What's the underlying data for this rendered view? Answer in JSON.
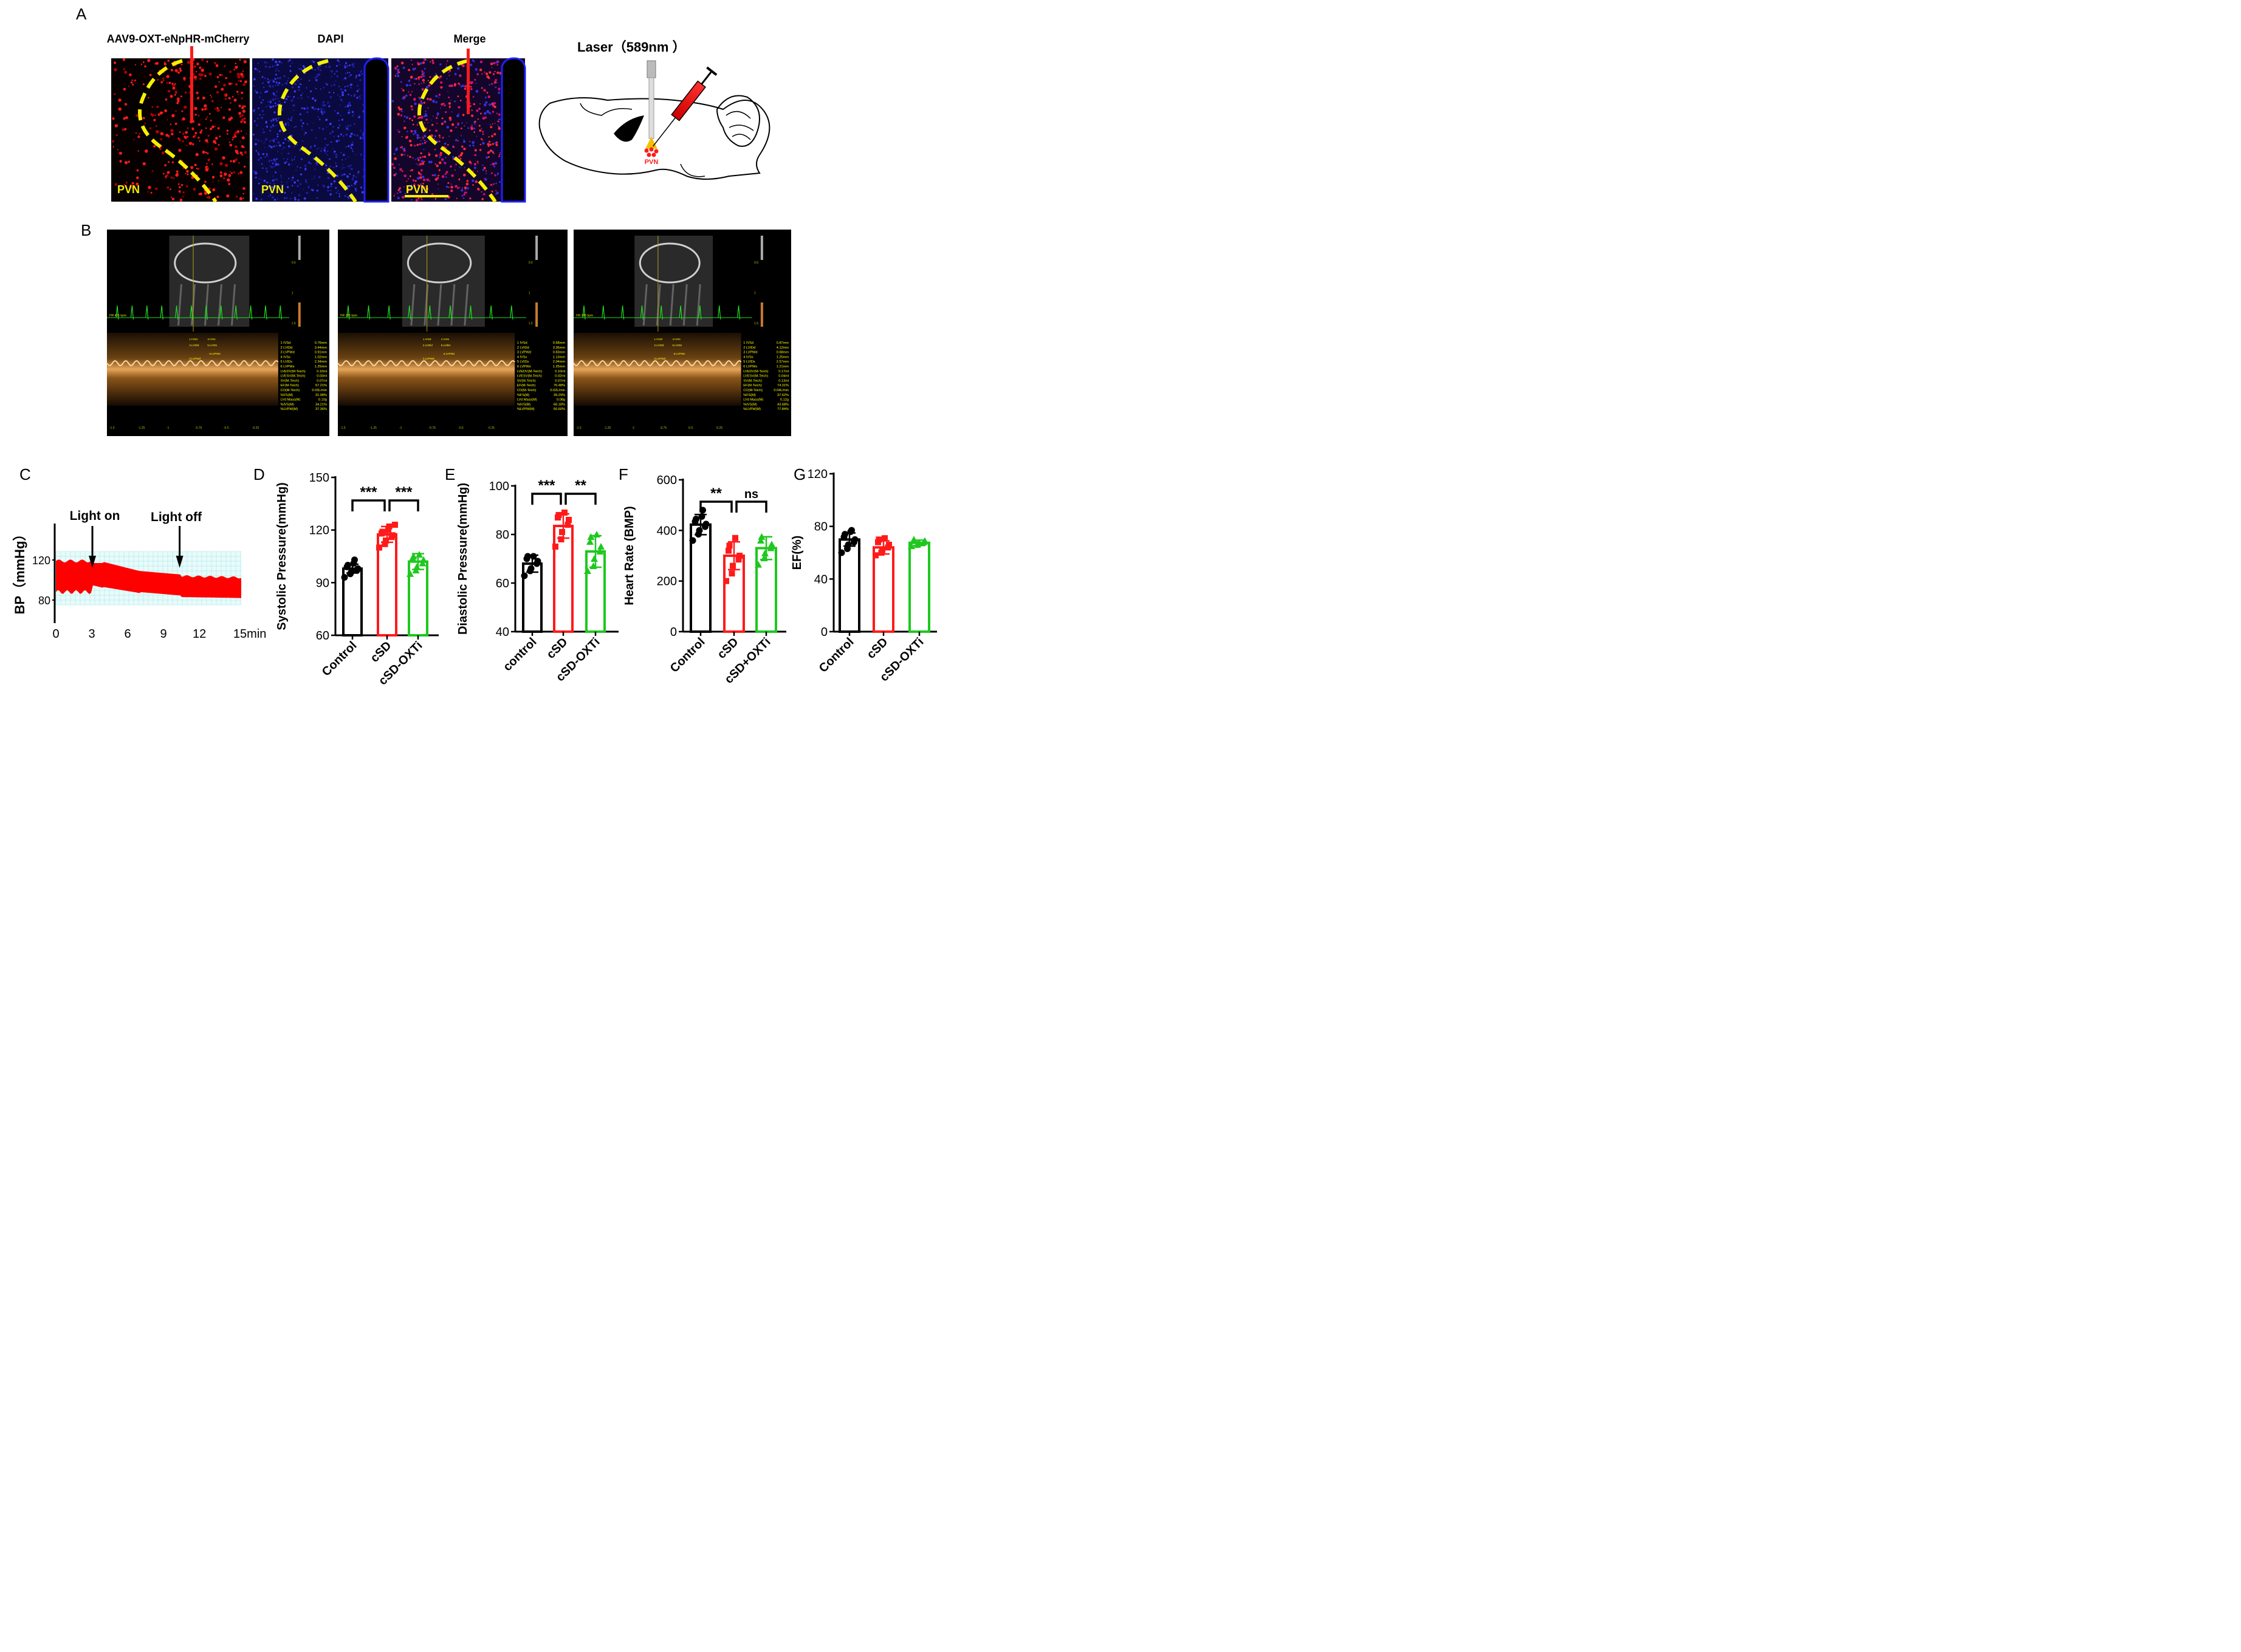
{
  "panel_letters": {
    "a": "A",
    "b": "B",
    "c": "C",
    "d": "D",
    "e": "E",
    "f": "F",
    "g": "G"
  },
  "panel_a": {
    "image_titles": [
      "AAV9-OXT-eNpHR-mCherry",
      "DAPI",
      "Merge"
    ],
    "region_label": "PVN",
    "laser_label": "Laser（589nm ）",
    "brain_label": "PVN",
    "colors": {
      "red": "#ff1a1a",
      "dapi_blue": "#1010c8",
      "dashed_outline": "#f5f000",
      "label_yellow": "#f5f000"
    }
  },
  "panel_b": {
    "hr_labels": [
      "HR 406 bpm",
      "HR 285 bpm",
      "HR 288 bpm"
    ],
    "marker_labels": [
      "1.IVSd",
      "4.IVSs",
      "2.LVIDd",
      "5.LVIDs",
      "3.LVPWd",
      "6.LVPWs"
    ],
    "axis_ticks": [
      "-1.5",
      "-1.25",
      "-1",
      "-0.75",
      "-0.5",
      "-0.25"
    ],
    "depth_ticks": [
      "0.5",
      "1",
      "1.5"
    ],
    "measure_names": [
      "1 IVSd",
      "2 LVIDd",
      "3 LVPWd",
      "4 IVSs",
      "5 LVIDs",
      "6 LVPWs",
      "LVEDV(M-Teich)",
      "LVESV(M-Teich)",
      "SV(M-Teich)",
      "EF(M-Teich)",
      "CO(M-Teich)",
      "%FS(M)",
      "LVd Mass(M)",
      "%IVS(M)",
      "%LVPW(M)"
    ],
    "measure_values": [
      [
        "0.76mm",
        "3.44mm",
        "0.91mm",
        "1.02mm",
        "2.34mm",
        "1.25mm",
        "0.10ml",
        "0.03ml",
        "0.07ml",
        "67.21%",
        "0.03L/min",
        "31.98%",
        "0.10g",
        "34.21%",
        "37.36%"
      ],
      [
        "0.68mm",
        "3.36mm",
        "0.83mm",
        "1.13mm",
        "2.04mm",
        "1.25mm",
        "0.10ml",
        "0.02ml",
        "0.07ml",
        "76.48%",
        "0.02L/min",
        "39.29%",
        "0.08g",
        "66.18%",
        "50.60%"
      ],
      [
        "0.87mm",
        "4.12mm",
        "0.68mm",
        "1.25mm",
        "2.57mm",
        "1.21mm",
        "0.17ml",
        "0.04ml",
        "0.13ml",
        "74.31%",
        "0.04L/min",
        "37.62%",
        "0.12g",
        "43.68%",
        "77.84%"
      ]
    ],
    "colors": {
      "ecg": "#22dd22",
      "text": "#ffff00",
      "mmode": "#d08a30"
    }
  },
  "panel_c": {
    "ylabel": "BP（mmHg）",
    "x_ticks": [
      "0",
      "3",
      "6",
      "9",
      "12",
      "15min"
    ],
    "y_ticks": [
      "120",
      "80"
    ],
    "light_on_label": "Light on",
    "light_off_label": "Light off",
    "light_on_min": 3,
    "light_off_min": 10.5,
    "trace_color": "#ff0000"
  },
  "panel_d": {
    "ylabel": "Systolic Pressure(mmHg)",
    "ylim": [
      60,
      150
    ],
    "ticks": [
      "60",
      "90",
      "120",
      "150"
    ],
    "categories": [
      "Control",
      "cSD",
      "cSD-OXTi"
    ],
    "means": [
      98,
      117.5,
      102
    ],
    "sd": [
      2.5,
      4.5,
      4.5
    ],
    "markers": [
      "circle",
      "square",
      "triangle"
    ],
    "points": [
      [
        93,
        95,
        96,
        97,
        98,
        99,
        100,
        101,
        103
      ],
      [
        110,
        112,
        114,
        116,
        117,
        118,
        119,
        120,
        122,
        123
      ],
      [
        95,
        97,
        99,
        101,
        103,
        104,
        105,
        106
      ]
    ],
    "sig": [
      {
        "label": "***",
        "from": 0,
        "to": 1
      },
      {
        "label": "***",
        "from": 1,
        "to": 2
      }
    ]
  },
  "panel_e": {
    "ylabel": "Diastolic Pressure(mmHg)",
    "ylim": [
      40,
      100
    ],
    "ticks": [
      "40",
      "60",
      "80",
      "100"
    ],
    "categories": [
      "control",
      "cSD",
      "cSD-OXTi"
    ],
    "means": [
      68,
      83.5,
      73
    ],
    "sd": [
      3.5,
      5,
      6.5
    ],
    "markers": [
      "circle",
      "square",
      "triangle"
    ],
    "points": [
      [
        63,
        65,
        66,
        68,
        69,
        70,
        71,
        71
      ],
      [
        75,
        78,
        81,
        84,
        86,
        87,
        88,
        89
      ],
      [
        65,
        67,
        70,
        73,
        75,
        77,
        79,
        80
      ]
    ],
    "sig": [
      {
        "label": "***",
        "from": 0,
        "to": 1
      },
      {
        "label": "**",
        "from": 1,
        "to": 2
      }
    ]
  },
  "panel_f": {
    "ylabel": "Heart Rate (BMP)",
    "ylim": [
      0,
      600
    ],
    "ticks": [
      "0",
      "200",
      "400",
      "600"
    ],
    "categories": [
      "Control",
      "cSD",
      "cSD+OXTi"
    ],
    "means": [
      423,
      300,
      330
    ],
    "sd": [
      40,
      55,
      45
    ],
    "markers": [
      "circle",
      "square",
      "triangle"
    ],
    "points": [
      [
        360,
        385,
        400,
        415,
        425,
        435,
        445,
        455,
        480
      ],
      [
        200,
        230,
        260,
        285,
        300,
        320,
        340,
        370
      ],
      [
        265,
        290,
        310,
        330,
        345,
        360,
        375
      ]
    ],
    "sig": [
      {
        "label": "**",
        "from": 0,
        "to": 1
      },
      {
        "label": "ns",
        "from": 1,
        "to": 2
      }
    ]
  },
  "panel_g": {
    "ylabel": "EF(%)",
    "ylim": [
      0,
      120
    ],
    "ticks": [
      "0",
      "40",
      "80",
      "120"
    ],
    "categories": [
      "Control",
      "cSD",
      "cSD-OXTi"
    ],
    "means": [
      70,
      64,
      67.5
    ],
    "sd": [
      5,
      5,
      2
    ],
    "markers": [
      "circle",
      "square",
      "triangle"
    ],
    "points": [
      [
        60,
        63,
        66,
        68,
        70,
        72,
        74,
        76,
        77
      ],
      [
        58,
        60,
        62,
        64,
        66,
        68,
        70,
        71
      ],
      [
        65,
        66,
        67,
        68,
        69,
        70
      ]
    ],
    "sig": []
  },
  "chart_data": [
    {
      "type": "line",
      "panel": "C",
      "ylabel": "BP（mmHg）",
      "x_ticks": [
        "0",
        "3",
        "6",
        "9",
        "12",
        "15min"
      ],
      "y_ticks": [
        "120",
        "80"
      ],
      "annotations": [
        "Light on",
        "Light off"
      ]
    },
    {
      "type": "bar",
      "panel": "D",
      "ylabel": "Systolic Pressure(mmHg)",
      "categories": [
        "Control",
        "cSD",
        "cSD-OXTi"
      ],
      "values": [
        98,
        117.5,
        102
      ],
      "ylim": [
        60,
        150
      ]
    },
    {
      "type": "bar",
      "panel": "E",
      "ylabel": "Diastolic Pressure(mmHg)",
      "categories": [
        "control",
        "cSD",
        "cSD-OXTi"
      ],
      "values": [
        68,
        83.5,
        73
      ],
      "ylim": [
        40,
        100
      ]
    },
    {
      "type": "bar",
      "panel": "F",
      "ylabel": "Heart Rate (BMP)",
      "categories": [
        "Control",
        "cSD",
        "cSD+OXTi"
      ],
      "values": [
        423,
        300,
        330
      ],
      "ylim": [
        0,
        600
      ]
    },
    {
      "type": "bar",
      "panel": "G",
      "ylabel": "EF(%)",
      "categories": [
        "Control",
        "cSD",
        "cSD-OXTi"
      ],
      "values": [
        70,
        64,
        67.5
      ],
      "ylim": [
        0,
        120
      ]
    }
  ],
  "group_colors": [
    "#000000",
    "#ff1a1a",
    "#1ec81e"
  ]
}
